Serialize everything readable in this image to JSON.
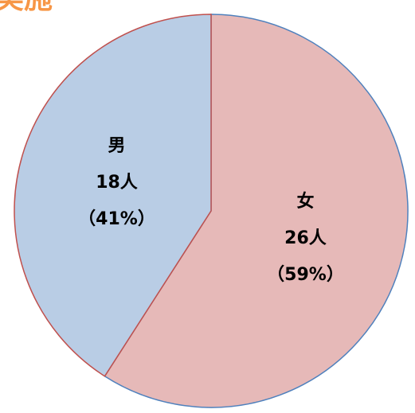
{
  "chart_data": {
    "type": "pie",
    "title": "実施",
    "categories": [
      "女",
      "男"
    ],
    "values": [
      26,
      18
    ],
    "value_labels": [
      "26人",
      "18人"
    ],
    "percent_labels": [
      "（59%）",
      "（41%）"
    ],
    "colors": [
      "#e6b9b8",
      "#b9cde5"
    ],
    "edge_colors": [
      "#4f81bd",
      "#c0504d"
    ]
  }
}
